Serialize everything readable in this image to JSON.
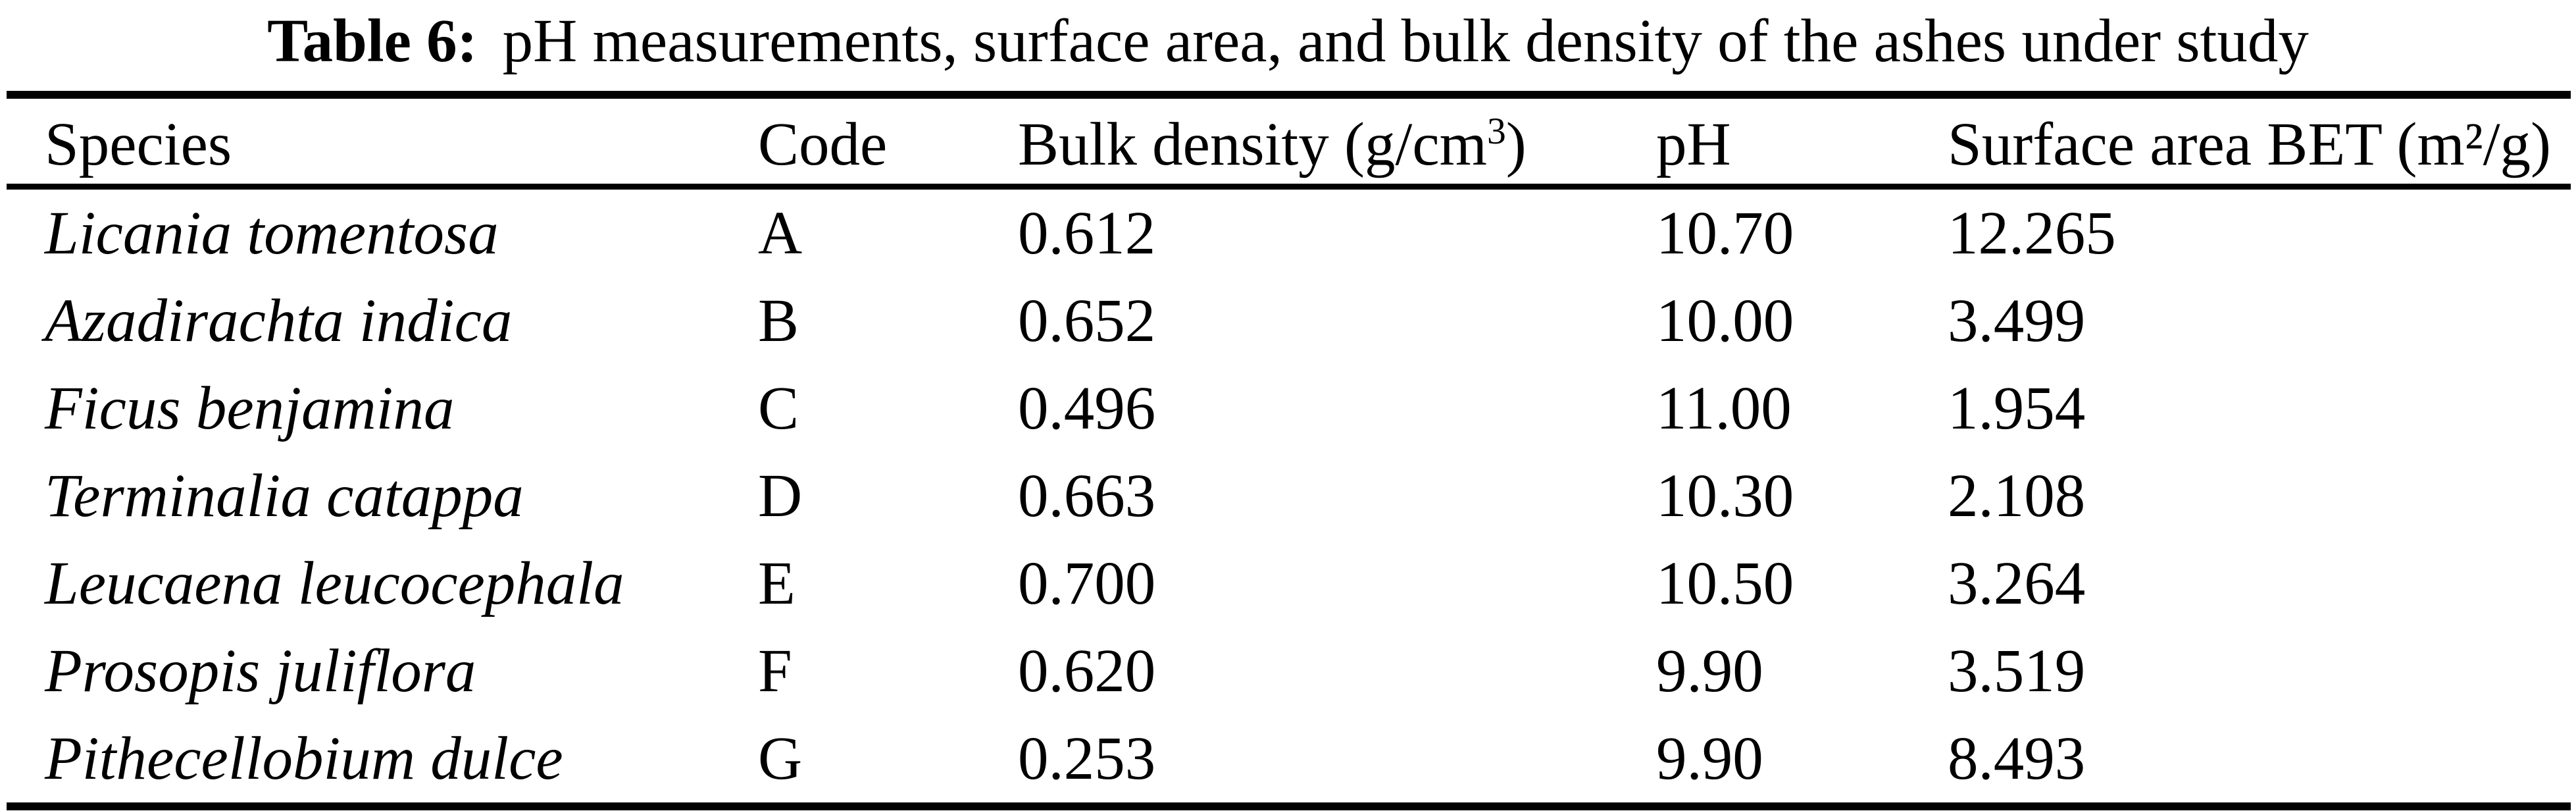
{
  "page": {
    "background": "#ffffff",
    "text_color": "#000000",
    "rule_color": "#000000"
  },
  "caption": {
    "label": "Table 6:",
    "text": "pH measurements, surface area, and bulk density of the ashes under study"
  },
  "table": {
    "headers": {
      "species": "Species",
      "code": "Code",
      "bulk_density_main": "Bulk density (g/cm",
      "bulk_density_sup": "3",
      "bulk_density_end": ")",
      "ph": "pH",
      "surface_area": "Surface area BET (m²/g)"
    },
    "rows": [
      {
        "species": "Licania tomentosa",
        "code": "A",
        "bulk_density": "0.612",
        "ph": "10.70",
        "surface_area": "12.265"
      },
      {
        "species": "Azadirachta indica",
        "code": "B",
        "bulk_density": "0.652",
        "ph": "10.00",
        "surface_area": "3.499"
      },
      {
        "species": "Ficus benjamina",
        "code": "C",
        "bulk_density": "0.496",
        "ph": "11.00",
        "surface_area": "1.954"
      },
      {
        "species": "Terminalia catappa",
        "code": "D",
        "bulk_density": "0.663",
        "ph": "10.30",
        "surface_area": "2.108"
      },
      {
        "species": "Leucaena leucocephala",
        "code": "E",
        "bulk_density": "0.700",
        "ph": "10.50",
        "surface_area": "3.264"
      },
      {
        "species": "Prosopis juliflora",
        "code": "F",
        "bulk_density": "0.620",
        "ph": "9.90",
        "surface_area": "3.519"
      },
      {
        "species": "Pithecellobium dulce",
        "code": "G",
        "bulk_density": "0.253",
        "ph": "9.90",
        "surface_area": "8.493"
      }
    ]
  }
}
